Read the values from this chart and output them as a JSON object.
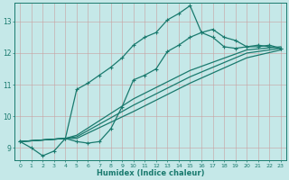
{
  "xlabel": "Humidex (Indice chaleur)",
  "bg_color": "#c5e8e8",
  "line_color": "#1a7a6e",
  "grid_color": "#b0d0d0",
  "xlim": [
    -0.5,
    23.5
  ],
  "ylim": [
    8.6,
    13.6
  ],
  "xticks": [
    0,
    1,
    2,
    3,
    4,
    5,
    6,
    7,
    8,
    9,
    10,
    11,
    12,
    13,
    14,
    15,
    16,
    17,
    18,
    19,
    20,
    21,
    22,
    23
  ],
  "yticks": [
    9,
    10,
    11,
    12,
    13
  ],
  "curve_main_x": [
    0,
    1,
    2,
    3,
    4,
    5,
    6,
    7,
    8,
    9,
    10,
    11,
    12,
    13,
    14,
    15,
    16,
    17,
    18,
    19,
    20,
    21,
    22,
    23
  ],
  "curve_main_y": [
    9.2,
    9.0,
    8.75,
    8.9,
    9.3,
    9.2,
    9.15,
    9.2,
    9.6,
    10.3,
    11.15,
    11.3,
    11.5,
    12.05,
    12.25,
    12.5,
    12.65,
    12.5,
    12.2,
    12.15,
    12.2,
    12.25,
    12.2,
    12.15
  ],
  "curve_peak_x": [
    0,
    4,
    5,
    6,
    7,
    8,
    9,
    10,
    11,
    12,
    13,
    14,
    15,
    16,
    17,
    18,
    19,
    20,
    21,
    22,
    23
  ],
  "curve_peak_y": [
    9.2,
    9.3,
    10.85,
    11.05,
    11.3,
    11.55,
    11.85,
    12.25,
    12.5,
    12.65,
    13.05,
    13.25,
    13.5,
    12.65,
    12.75,
    12.5,
    12.4,
    12.2,
    12.2,
    12.25,
    12.15
  ],
  "straight_lines": [
    {
      "x": [
        0,
        4,
        5,
        10,
        15,
        20,
        23
      ],
      "y": [
        9.2,
        9.3,
        9.3,
        10.15,
        11.05,
        11.85,
        12.1
      ]
    },
    {
      "x": [
        0,
        4,
        5,
        10,
        15,
        20,
        23
      ],
      "y": [
        9.2,
        9.3,
        9.35,
        10.35,
        11.25,
        12.0,
        12.15
      ]
    },
    {
      "x": [
        0,
        4,
        5,
        10,
        15,
        20,
        23
      ],
      "y": [
        9.2,
        9.3,
        9.4,
        10.55,
        11.45,
        12.1,
        12.2
      ]
    }
  ]
}
